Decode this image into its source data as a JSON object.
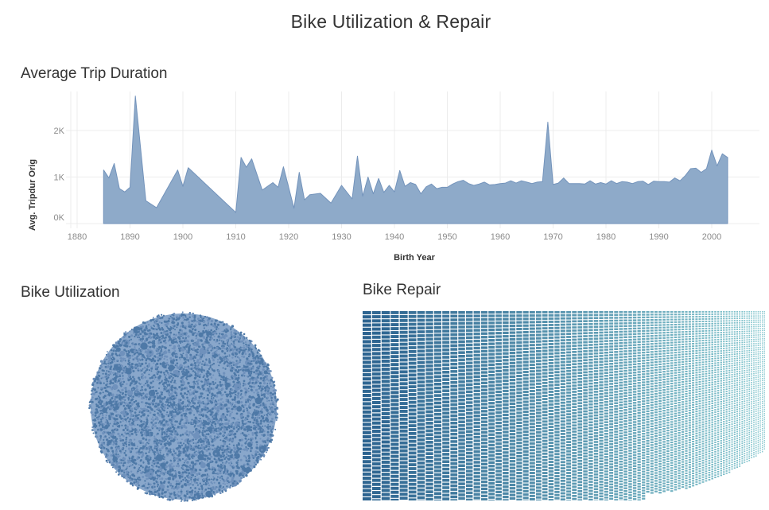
{
  "dashboard": {
    "title": "Bike Utilization & Repair"
  },
  "sheets": {
    "trip_duration": {
      "title": "Average Trip Duration"
    },
    "utilization": {
      "title": "Bike Utilization"
    },
    "repair": {
      "title": "Bike Repair"
    }
  },
  "colors": {
    "area_fill": "#8eaac9",
    "area_stroke": "#7393bb",
    "grid": "#ececec",
    "bubble_dark": "#4e79a7",
    "bubble_light": "#89a7cb",
    "treemap_start": "#2e6591",
    "treemap_end": "#86c8cf"
  },
  "chart_data": [
    {
      "type": "area",
      "title": "Average Trip Duration",
      "xlabel": "Birth Year",
      "ylabel": "Avg. Tripdur Orig",
      "xlim": [
        1878.8,
        2009
      ],
      "ylim": [
        0,
        2900
      ],
      "xticks": [
        1880,
        1890,
        1900,
        1910,
        1920,
        1930,
        1940,
        1950,
        1960,
        1970,
        1980,
        1990,
        2000
      ],
      "yticks": [
        {
          "value": 0,
          "label": "0K"
        },
        {
          "value": 1000,
          "label": "1K"
        },
        {
          "value": 2000,
          "label": "2K"
        }
      ],
      "grid": true,
      "x": [
        1885,
        1886,
        1887,
        1888,
        1889,
        1890,
        1891,
        1893,
        1895,
        1899,
        1900,
        1901,
        1910,
        1911,
        1912,
        1913,
        1915,
        1917,
        1918,
        1919,
        1921,
        1922,
        1923,
        1924,
        1926,
        1928,
        1930,
        1932,
        1933,
        1934,
        1935,
        1936,
        1937,
        1938,
        1939,
        1940,
        1941,
        1942,
        1943,
        1944,
        1945,
        1946,
        1947,
        1948,
        1949,
        1950,
        1951,
        1952,
        1953,
        1954,
        1955,
        1956,
        1957,
        1958,
        1959,
        1960,
        1961,
        1962,
        1963,
        1964,
        1965,
        1966,
        1967,
        1968,
        1969,
        1970,
        1971,
        1972,
        1973,
        1974,
        1975,
        1976,
        1977,
        1978,
        1979,
        1980,
        1981,
        1982,
        1983,
        1984,
        1985,
        1986,
        1987,
        1988,
        1989,
        1990,
        1991,
        1992,
        1993,
        1994,
        1995,
        1996,
        1997,
        1998,
        1999,
        2000,
        2001,
        2002,
        2003
      ],
      "values": [
        1150,
        980,
        1290,
        750,
        680,
        780,
        2740,
        490,
        340,
        1150,
        800,
        1200,
        240,
        1420,
        1210,
        1390,
        720,
        880,
        780,
        1220,
        330,
        1100,
        510,
        620,
        650,
        440,
        820,
        530,
        1450,
        590,
        1000,
        640,
        970,
        670,
        820,
        680,
        1140,
        800,
        880,
        840,
        640,
        790,
        850,
        750,
        780,
        780,
        850,
        900,
        930,
        860,
        820,
        850,
        890,
        830,
        840,
        860,
        870,
        920,
        870,
        920,
        890,
        860,
        890,
        900,
        2180,
        840,
        870,
        980,
        860,
        860,
        860,
        850,
        920,
        850,
        880,
        850,
        920,
        860,
        900,
        890,
        860,
        900,
        910,
        840,
        910,
        900,
        900,
        890,
        980,
        920,
        1030,
        1180,
        1190,
        1100,
        1180,
        1580,
        1240,
        1500,
        1420
      ]
    },
    {
      "type": "packed-bubble",
      "title": "Bike Utilization",
      "note": "Thousands of circles (one per bike) packed into a circular cluster; size = utilization"
    },
    {
      "type": "treemap",
      "title": "Bike Repair",
      "note": "Thousands of small rectangles; color gradient from dark blue-teal (left, most usage) to light teal (right)"
    }
  ]
}
